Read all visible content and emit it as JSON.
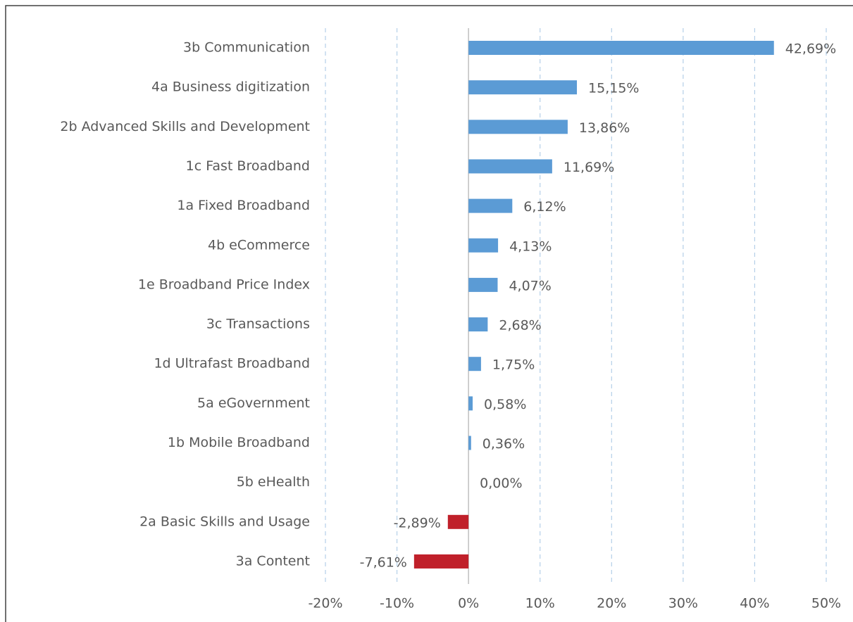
{
  "chart_data": {
    "type": "hbar",
    "categories": [
      "3b Communication",
      "4a Business digitization",
      "2b Advanced Skills and Development",
      "1c Fast Broadband",
      "1a Fixed Broadband",
      "4b eCommerce",
      "1e Broadband Price Index",
      "3c Transactions",
      "1d Ultrafast Broadband",
      "5a eGovernment",
      "1b Mobile Broadband",
      "5b eHealth",
      "2a Basic Skills and Usage",
      "3a Content"
    ],
    "values": [
      42.69,
      15.15,
      13.86,
      11.69,
      6.12,
      4.13,
      4.07,
      2.68,
      1.75,
      0.58,
      0.36,
      0.0,
      -2.89,
      -7.61
    ],
    "value_labels": [
      "42,69%",
      "15,15%",
      "13,86%",
      "11,69%",
      "6,12%",
      "4,13%",
      "4,07%",
      "2,68%",
      "1,75%",
      "0,58%",
      "0,36%",
      "0,00%",
      "-2,89%",
      "-7,61%"
    ],
    "color": "#5b9bd5",
    "negative_color": "#c0202a",
    "xlim": [
      -20,
      50
    ],
    "xticks": [
      {
        "value": -20,
        "label": "-20%"
      },
      {
        "value": -10,
        "label": "-10%"
      },
      {
        "value": 0,
        "label": "0%"
      },
      {
        "value": 10,
        "label": "10%"
      },
      {
        "value": 20,
        "label": "20%"
      },
      {
        "value": 30,
        "label": "30%"
      },
      {
        "value": 40,
        "label": "40%"
      },
      {
        "value": 50,
        "label": "50%"
      }
    ],
    "grid": true
  }
}
